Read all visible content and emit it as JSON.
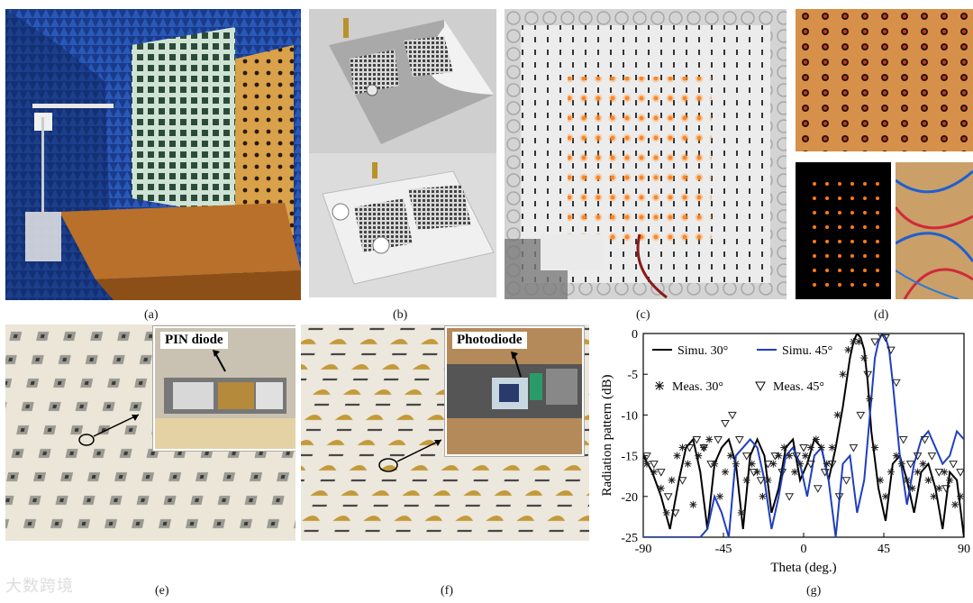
{
  "captions": [
    "(a)",
    "(b)",
    "(c)",
    "(d)",
    "(e)",
    "(f)",
    "(g)"
  ],
  "inset_labels": {
    "e": "PIN diode",
    "f": "Photodiode"
  },
  "watermark": "大数跨境",
  "colors": {
    "simu30": "#000000",
    "simu45": "#1f3fbf",
    "meas": "#222222"
  },
  "chart_data": {
    "type": "line",
    "xlabel": "Theta (deg.)",
    "ylabel": "Radiation pattern (dB)",
    "xlim": [
      -90,
      90
    ],
    "ylim": [
      -25,
      0
    ],
    "xticks": [
      "-90",
      "-45",
      "0",
      "45",
      "90"
    ],
    "yticks": [
      "0",
      "-5",
      "-10",
      "-15",
      "-20",
      "-25"
    ],
    "legend": [
      "Simu. 30°",
      "Simu. 45°",
      "Meas. 30°",
      "Meas. 45°"
    ],
    "legend_placement": "top",
    "series": [
      {
        "name": "Simu. 30°",
        "style": "solid",
        "color": "#000000",
        "x": [
          -90,
          -85,
          -80,
          -75,
          -70,
          -66,
          -62,
          -58,
          -54,
          -50,
          -46,
          -42,
          -38,
          -34,
          -30,
          -26,
          -22,
          -18,
          -14,
          -10,
          -6,
          -2,
          2,
          6,
          10,
          14,
          18,
          22,
          26,
          28,
          30,
          32,
          34,
          36,
          38,
          42,
          46,
          50,
          54,
          58,
          62,
          66,
          70,
          74,
          78,
          82,
          86,
          90
        ],
        "y": [
          -15,
          -17,
          -20,
          -24,
          -18,
          -14,
          -13,
          -17,
          -24,
          -16,
          -14,
          -13,
          -16,
          -24,
          -15,
          -13,
          -15,
          -22,
          -19,
          -14,
          -13,
          -18,
          -16,
          -13,
          -14,
          -18,
          -14,
          -9,
          -3,
          -1,
          0,
          -0.5,
          -2,
          -6,
          -12,
          -19,
          -23,
          -16,
          -15,
          -18,
          -22,
          -17,
          -16,
          -19,
          -24,
          -17,
          -18,
          -25
        ]
      },
      {
        "name": "Simu. 45°",
        "style": "solid",
        "color": "#1f3fbf",
        "x": [
          -90,
          -85,
          -80,
          -75,
          -70,
          -66,
          -62,
          -58,
          -54,
          -50,
          -46,
          -42,
          -38,
          -34,
          -30,
          -26,
          -22,
          -18,
          -14,
          -10,
          -6,
          -2,
          2,
          6,
          10,
          14,
          18,
          22,
          26,
          30,
          34,
          38,
          40,
          42,
          44,
          46,
          48,
          50,
          54,
          58,
          62,
          66,
          70,
          74,
          78,
          82,
          86,
          90
        ],
        "y": [
          -25,
          -25,
          -25,
          -25,
          -25,
          -25,
          -25,
          -25,
          -24,
          -20,
          -22,
          -25,
          -15,
          -14,
          -13,
          -14,
          -18,
          -24,
          -20,
          -15,
          -14,
          -16,
          -20,
          -15,
          -14,
          -18,
          -25,
          -16,
          -15,
          -22,
          -18,
          -8,
          -3,
          -1,
          0,
          -0.5,
          -2,
          -6,
          -15,
          -21,
          -16,
          -13,
          -12,
          -14,
          -16,
          -15,
          -12,
          -13
        ]
      },
      {
        "name": "Meas. 30°",
        "style": "star",
        "color": "#222222",
        "x": [
          -88,
          -84,
          -80,
          -77,
          -74,
          -71,
          -68,
          -65,
          -62,
          -59,
          -56,
          -53,
          -50,
          -47,
          -44,
          -41,
          -38,
          -35,
          -32,
          -29,
          -26,
          -23,
          -20,
          -17,
          -14,
          -11,
          -8,
          -5,
          -2,
          1,
          4,
          7,
          10,
          13,
          16,
          19,
          22,
          25,
          28,
          31,
          34,
          37,
          40,
          43,
          46,
          49,
          52,
          55,
          58,
          61,
          64,
          67,
          70,
          73,
          76,
          79,
          82,
          85,
          88
        ],
        "y": [
          -16,
          -17,
          -19,
          -22,
          -18,
          -15,
          -14,
          -16,
          -21,
          -15,
          -14,
          -13,
          -16,
          -20,
          -17,
          -15,
          -16,
          -22,
          -18,
          -16,
          -17,
          -20,
          -18,
          -16,
          -15,
          -14,
          -15,
          -17,
          -16,
          -15,
          -14,
          -13,
          -14,
          -16,
          -14,
          -10,
          -5,
          -2,
          -1,
          -1,
          -3,
          -8,
          -14,
          -18,
          -20,
          -17,
          -15,
          -16,
          -18,
          -19,
          -17,
          -16,
          -18,
          -20,
          -19,
          -17,
          -18,
          -21,
          -20
        ]
      },
      {
        "name": "Meas. 45°",
        "style": "triangle",
        "color": "#222222",
        "x": [
          -88,
          -84,
          -80,
          -76,
          -72,
          -68,
          -64,
          -60,
          -56,
          -52,
          -48,
          -44,
          -40,
          -36,
          -32,
          -28,
          -24,
          -20,
          -16,
          -12,
          -8,
          -4,
          0,
          4,
          8,
          12,
          16,
          20,
          24,
          28,
          32,
          36,
          40,
          43,
          46,
          49,
          52,
          56,
          60,
          64,
          68,
          72,
          76,
          80,
          84,
          88
        ],
        "y": [
          -15,
          -16,
          -17,
          -20,
          -22,
          -18,
          -14,
          -13,
          -14,
          -16,
          -13,
          -11,
          -10,
          -13,
          -15,
          -17,
          -18,
          -16,
          -15,
          -17,
          -20,
          -15,
          -14,
          -16,
          -19,
          -17,
          -16,
          -20,
          -18,
          -14,
          -10,
          -5,
          -1,
          0,
          -0.5,
          -2,
          -6,
          -13,
          -16,
          -15,
          -13,
          -15,
          -17,
          -19,
          -16,
          -17
        ]
      }
    ]
  }
}
